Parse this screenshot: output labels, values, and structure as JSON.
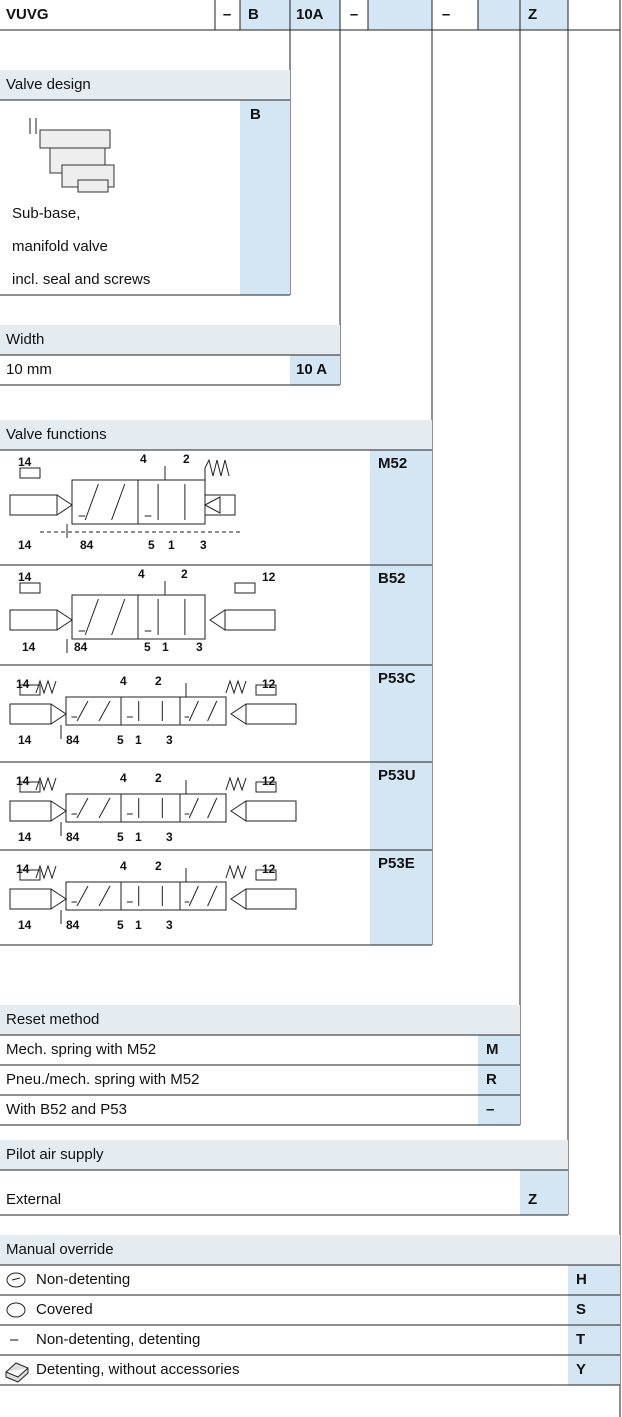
{
  "order_code": {
    "cells": [
      "VUVG",
      "–",
      "B",
      "10A",
      "–",
      "–",
      "Z"
    ]
  },
  "valve_design": {
    "title": "Valve design",
    "code": "B",
    "description": [
      "Sub-base,",
      "manifold valve",
      "incl. seal and screws"
    ]
  },
  "width": {
    "title": "Width",
    "rows": [
      {
        "label": "10 mm",
        "code": "10 A"
      }
    ]
  },
  "valve_functions": {
    "title": "Valve functions",
    "rows": [
      {
        "code": "M52",
        "ports": [
          "14",
          "4",
          "2",
          "14",
          "84",
          "5",
          "1",
          "3"
        ]
      },
      {
        "code": "B52",
        "ports": [
          "14",
          "4",
          "2",
          "12",
          "14",
          "84",
          "5",
          "1",
          "3"
        ]
      },
      {
        "code": "P53C",
        "ports": [
          "14",
          "4",
          "2",
          "12",
          "14",
          "84",
          "5",
          "1",
          "3"
        ]
      },
      {
        "code": "P53U",
        "ports": [
          "14",
          "4",
          "2",
          "12",
          "14",
          "84",
          "5",
          "1",
          "3"
        ]
      },
      {
        "code": "P53E",
        "ports": [
          "14",
          "4",
          "2",
          "12",
          "14",
          "84",
          "5",
          "1",
          "3"
        ]
      }
    ]
  },
  "reset_method": {
    "title": "Reset method",
    "rows": [
      {
        "label": "Mech. spring with M52",
        "code": "M"
      },
      {
        "label": "Pneu./mech. spring with M52",
        "code": "R"
      },
      {
        "label": "With B52 and P53",
        "code": "–"
      }
    ]
  },
  "pilot_air_supply": {
    "title": "Pilot air supply",
    "rows": [
      {
        "label": "External",
        "code": "Z"
      }
    ]
  },
  "manual_override": {
    "title": "Manual override",
    "rows": [
      {
        "label": "Non-detenting",
        "code": "H"
      },
      {
        "label": "Covered",
        "code": "S"
      },
      {
        "marker": "–",
        "label": "Non-detenting, detenting",
        "code": "T"
      },
      {
        "label": "Detenting, without accessories",
        "code": "Y"
      }
    ]
  }
}
